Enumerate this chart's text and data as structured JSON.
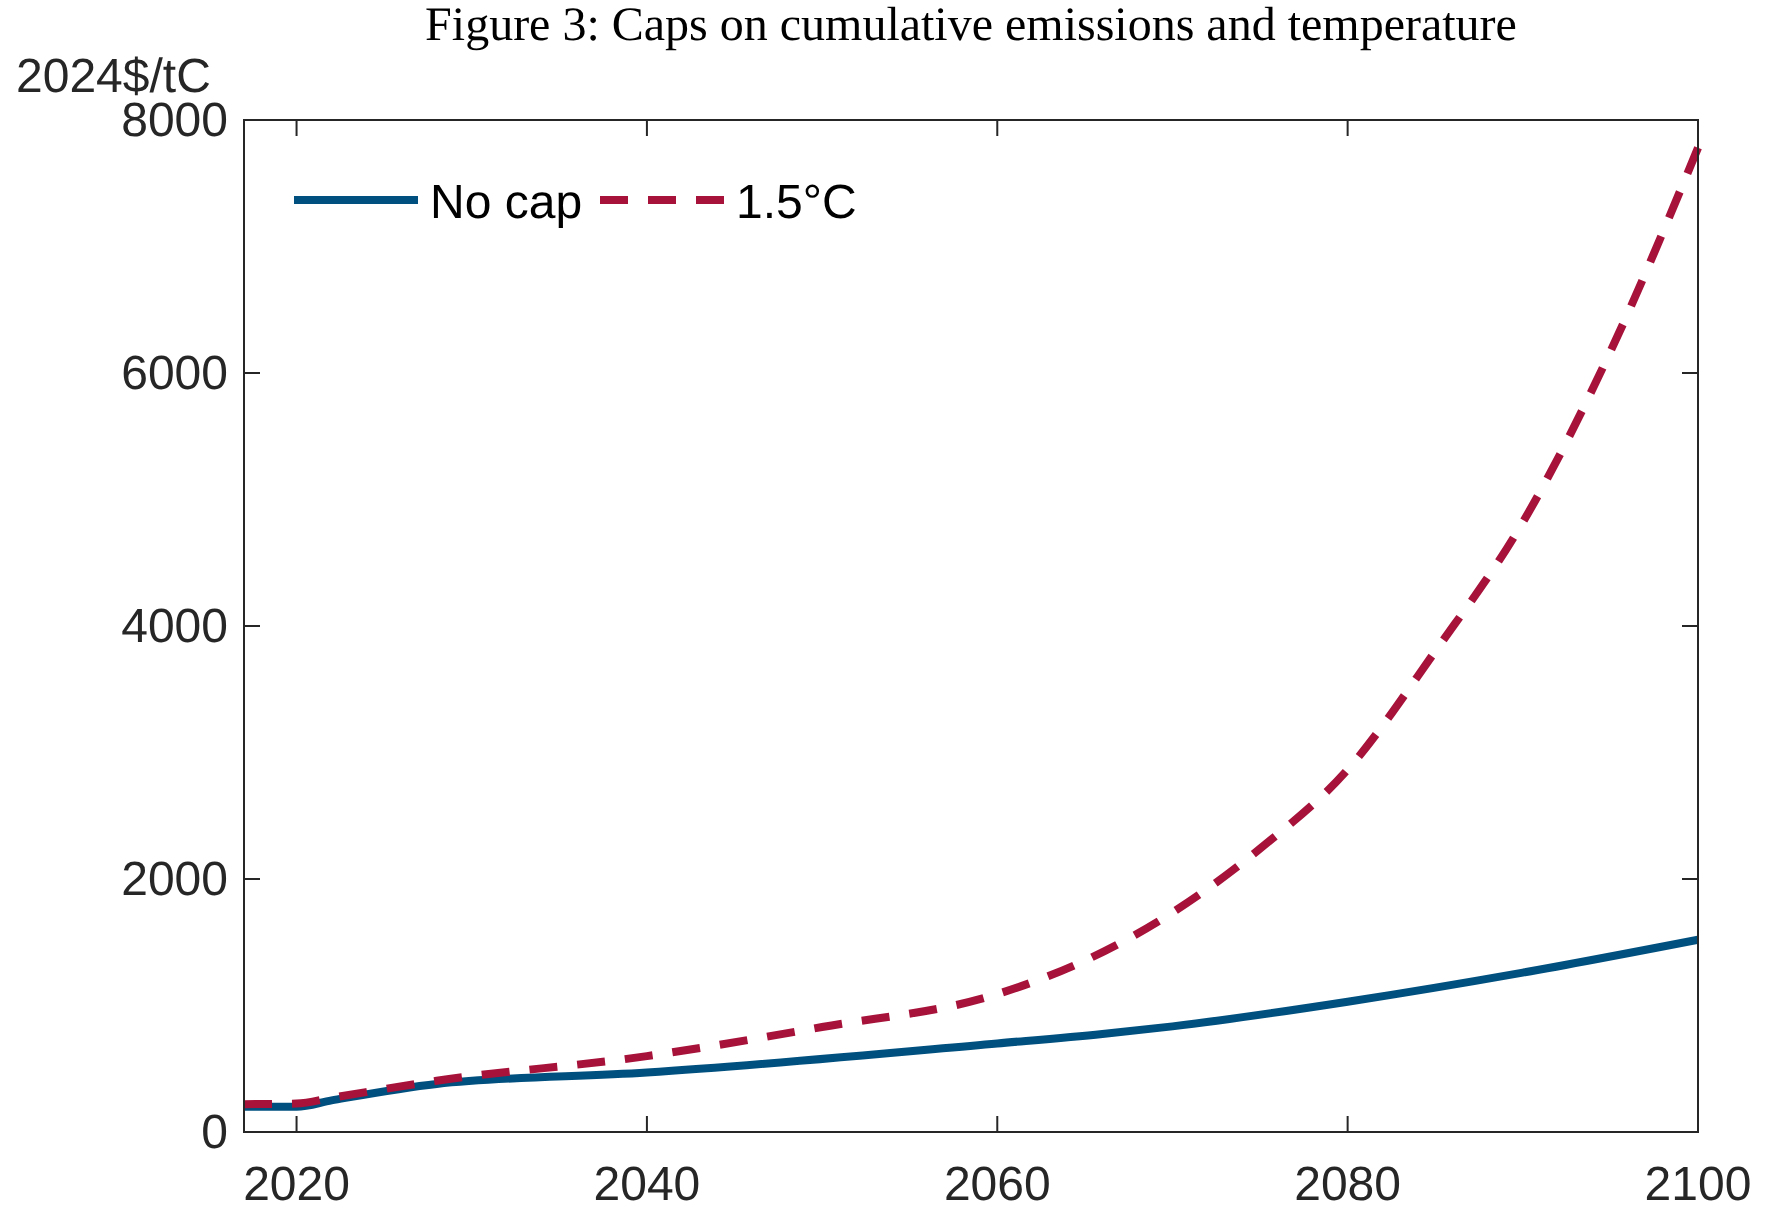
{
  "chart_data": {
    "type": "line",
    "title": "Figure 3: Caps on cumulative emissions and temperature",
    "ylabel": "2024$/tC",
    "xlim": [
      2017,
      2100
    ],
    "xticks": [
      2020,
      2040,
      2060,
      2080,
      2100
    ],
    "ylim": [
      0,
      8000
    ],
    "yticks": [
      0,
      2000,
      4000,
      6000,
      8000
    ],
    "grid": false,
    "legend": "top left",
    "series": [
      {
        "name": "No cap",
        "color": "#00507f",
        "line_style": "solid",
        "x": [
          2017,
          2020,
          2022,
          2028,
          2040,
          2060,
          2066,
          2070,
          2080,
          2090,
          2100
        ],
        "values": [
          200,
          200,
          250,
          380,
          470,
          700,
          775,
          835,
          1030,
          1260,
          1520
        ]
      },
      {
        "name": "1.5°C",
        "color": "#a6123a",
        "line_style": "dashed",
        "x": [
          2017,
          2020,
          2022,
          2028,
          2040,
          2050,
          2060,
          2065,
          2070,
          2075,
          2080,
          2085,
          2090,
          2095,
          2100
        ],
        "values": [
          220,
          225,
          270,
          405,
          600,
          830,
          1090,
          1355,
          1735,
          2240,
          2865,
          3800,
          4820,
          6170,
          7780
        ]
      }
    ]
  }
}
